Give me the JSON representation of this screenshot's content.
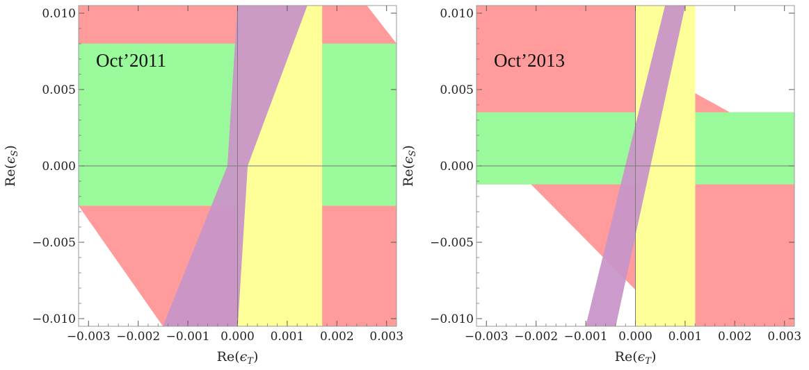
{
  "chart_data": [
    {
      "type": "area",
      "title": "",
      "annotation": "Oct’2011",
      "xlabel": "Re(ϵ_T)",
      "ylabel": "Re(ϵ_S)",
      "xlim": [
        -0.0032,
        0.0032
      ],
      "ylim": [
        -0.0105,
        0.0105
      ],
      "xticks": [
        -0.003,
        -0.002,
        -0.001,
        0.0,
        0.001,
        0.002,
        0.003
      ],
      "xtick_labels": [
        "−0.003",
        "−0.002",
        "−0.001",
        "0.000",
        "0.001",
        "0.002",
        "0.003"
      ],
      "yticks": [
        0.01,
        0.005,
        0.0,
        -0.005,
        -0.01
      ],
      "ytick_labels": [
        "0.010",
        "0.005",
        "0.000",
        "−0.005",
        "−0.010"
      ],
      "grid": false,
      "colors": {
        "red": "#ff9b9b",
        "green": "#9af99a",
        "yellow": "#ffff9a",
        "purple": "#c896c8"
      },
      "regions": [
        {
          "name": "red",
          "color": "#ff9b9b",
          "polygon": [
            [
              -0.0032,
              0.0105
            ],
            [
              0.0026,
              0.0105
            ],
            [
              0.0032,
              0.008
            ],
            [
              0.0032,
              -0.0105
            ],
            [
              -0.0015,
              -0.0105
            ],
            [
              -0.0032,
              -0.0026
            ]
          ]
        },
        {
          "name": "green",
          "color": "#9af99a",
          "polygon": [
            [
              -0.0032,
              0.008
            ],
            [
              0.0032,
              0.008
            ],
            [
              0.0032,
              -0.0026
            ],
            [
              -0.0032,
              -0.0026
            ]
          ]
        },
        {
          "name": "yellow",
          "color": "#ffff9a",
          "polygon": [
            [
              0.0,
              0.0105
            ],
            [
              0.0017,
              0.0105
            ],
            [
              0.0017,
              -0.0105
            ],
            [
              0.0,
              -0.0105
            ]
          ]
        },
        {
          "name": "purple",
          "color": "#c896c8",
          "polygon": [
            [
              0.0,
              0.0105
            ],
            [
              0.0014,
              0.0105
            ],
            [
              0.0002,
              0.0
            ],
            [
              -0.0,
              -0.0105
            ],
            [
              -0.0015,
              -0.0105
            ],
            [
              -0.0002,
              0.0
            ]
          ]
        }
      ]
    },
    {
      "type": "area",
      "title": "",
      "annotation": "Oct’2013",
      "xlabel": "Re(ϵ_T)",
      "ylabel": "Re(ϵ_S)",
      "xlim": [
        -0.0032,
        0.0032
      ],
      "ylim": [
        -0.0105,
        0.0105
      ],
      "xticks": [
        -0.003,
        -0.002,
        -0.001,
        0.0,
        0.001,
        0.002,
        0.003
      ],
      "xtick_labels": [
        "−0.003",
        "−0.002",
        "−0.001",
        "0.000",
        "0.001",
        "0.002",
        "0.003"
      ],
      "yticks": [
        0.01,
        0.005,
        0.0,
        -0.005,
        -0.01
      ],
      "ytick_labels": [
        "0.010",
        "0.005",
        "0.000",
        "−0.005",
        "−0.010"
      ],
      "grid": false,
      "colors": {
        "red": "#ff9b9b",
        "green": "#9af99a",
        "yellow": "#ffff9a",
        "purple": "#c896c8"
      },
      "regions": [
        {
          "name": "red",
          "color": "#ff9b9b",
          "polygon": [
            [
              -0.0032,
              0.0105
            ],
            [
              0.0,
              0.0105
            ],
            [
              0.0,
              0.0069
            ],
            [
              0.0019,
              0.0035
            ],
            [
              0.0032,
              0.0035
            ],
            [
              0.0032,
              -0.0105
            ],
            [
              0.0,
              -0.0105
            ],
            [
              0.0,
              -0.0081
            ],
            [
              -0.0021,
              -0.0012
            ],
            [
              -0.0032,
              -0.0012
            ]
          ]
        },
        {
          "name": "green",
          "color": "#9af99a",
          "polygon": [
            [
              -0.0032,
              0.0035
            ],
            [
              0.0032,
              0.0035
            ],
            [
              0.0032,
              -0.0012
            ],
            [
              -0.0032,
              -0.0012
            ]
          ]
        },
        {
          "name": "yellow",
          "color": "#ffff9a",
          "polygon": [
            [
              0.0,
              0.0105
            ],
            [
              0.0012,
              0.0105
            ],
            [
              0.0012,
              -0.0105
            ],
            [
              0.0,
              -0.0105
            ]
          ]
        },
        {
          "name": "purple",
          "color": "#c896c8",
          "polygon": [
            [
              0.0006,
              0.0105
            ],
            [
              0.001,
              0.0105
            ],
            [
              -0.0004,
              -0.0105
            ],
            [
              -0.001,
              -0.0105
            ]
          ]
        }
      ]
    }
  ]
}
